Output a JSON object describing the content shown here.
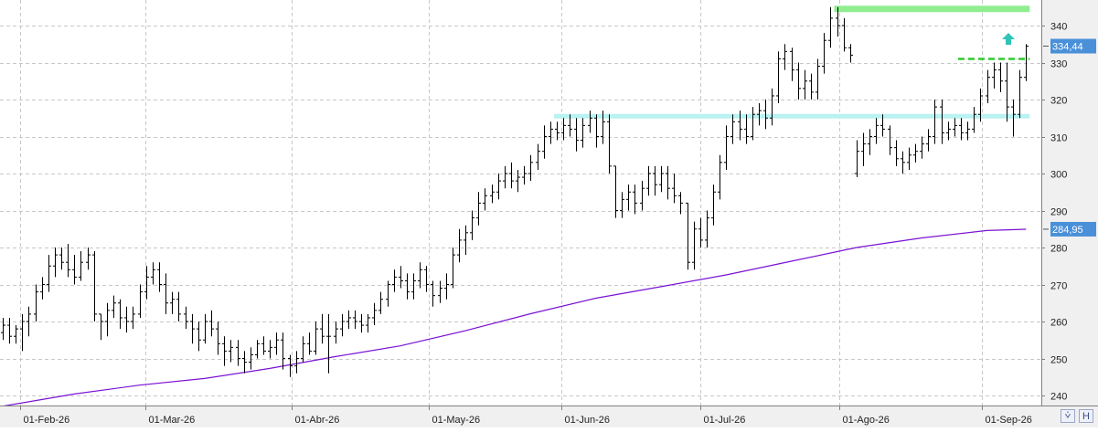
{
  "chart_data": {
    "type": "ohlc",
    "x_labels": [
      "01-Feb-26",
      "01-Mar-26",
      "01-Abr-26",
      "01-May-26",
      "01-Jun-26",
      "01-Jul-26",
      "01-Ago-26",
      "01-Sep-26"
    ],
    "y_ticks": [
      240,
      250,
      260,
      270,
      280,
      290,
      300,
      310,
      320,
      330,
      340
    ],
    "ylim": [
      236,
      346
    ],
    "last_price": 334.44,
    "last_price_label": "334,44",
    "ma_value": 284.95,
    "ma_label": "284,95",
    "grid": true,
    "bars": [
      [
        -1,
        257,
        261,
        255,
        259
      ],
      [
        0,
        259,
        261,
        254,
        256
      ],
      [
        1,
        256,
        259,
        254,
        258
      ],
      [
        2,
        258,
        262,
        252,
        260
      ],
      [
        3,
        260,
        264,
        256,
        262
      ],
      [
        4,
        262,
        270,
        260,
        268
      ],
      [
        5,
        268,
        272,
        266,
        270
      ],
      [
        6,
        270,
        278,
        268,
        275
      ],
      [
        7,
        275,
        280,
        272,
        278
      ],
      [
        8,
        278,
        280,
        274,
        276
      ],
      [
        9,
        276,
        281,
        272,
        274
      ],
      [
        10,
        274,
        278,
        270,
        272
      ],
      [
        11,
        272,
        279,
        271,
        276
      ],
      [
        12,
        276,
        280,
        274,
        278
      ],
      [
        13,
        278,
        279,
        260,
        262
      ],
      [
        14,
        262,
        262,
        255,
        260
      ],
      [
        15,
        260,
        265,
        256,
        263
      ],
      [
        16,
        263,
        267,
        261,
        265
      ],
      [
        17,
        265,
        266,
        258,
        261
      ],
      [
        18,
        261,
        264,
        257,
        260
      ],
      [
        19,
        260,
        264,
        258,
        262
      ],
      [
        20,
        262,
        270,
        261,
        268
      ],
      [
        21,
        268,
        275,
        266,
        272
      ],
      [
        22,
        272,
        276,
        270,
        274
      ],
      [
        23,
        274,
        276,
        268,
        270
      ],
      [
        24,
        270,
        273,
        262,
        265
      ],
      [
        25,
        265,
        268,
        262,
        266
      ],
      [
        26,
        266,
        268,
        260,
        262
      ],
      [
        27,
        262,
        264,
        258,
        260
      ],
      [
        28,
        260,
        262,
        254,
        258
      ],
      [
        29,
        258,
        260,
        252,
        255
      ],
      [
        30,
        255,
        262,
        254,
        260
      ],
      [
        31,
        260,
        263,
        256,
        258
      ],
      [
        32,
        258,
        260,
        251,
        254
      ],
      [
        33,
        254,
        256,
        248,
        252
      ],
      [
        34,
        252,
        255,
        249,
        253
      ],
      [
        35,
        253,
        255,
        248,
        250
      ],
      [
        36,
        250,
        252,
        246,
        249
      ],
      [
        37,
        249,
        253,
        247,
        251
      ],
      [
        38,
        251,
        255,
        250,
        254
      ],
      [
        39,
        254,
        256,
        251,
        252
      ],
      [
        40,
        252,
        255,
        250,
        253
      ],
      [
        41,
        253,
        257,
        251,
        255
      ],
      [
        42,
        255,
        257,
        247,
        250
      ],
      [
        43,
        250,
        251,
        245,
        248
      ],
      [
        44,
        248,
        252,
        246,
        250
      ],
      [
        45,
        250,
        256,
        249,
        254
      ],
      [
        46,
        254,
        257,
        251,
        252
      ],
      [
        47,
        252,
        260,
        251,
        258
      ],
      [
        48,
        258,
        262,
        254,
        256
      ],
      [
        49,
        256,
        262,
        246,
        256
      ],
      [
        50,
        256,
        260,
        254,
        258
      ],
      [
        51,
        258,
        262,
        256,
        260
      ],
      [
        52,
        260,
        263,
        258,
        261
      ],
      [
        53,
        261,
        263,
        258,
        260
      ],
      [
        54,
        260,
        262,
        257,
        259
      ],
      [
        55,
        259,
        262,
        257,
        261
      ],
      [
        56,
        261,
        265,
        259,
        263
      ],
      [
        57,
        263,
        268,
        262,
        266
      ],
      [
        58,
        266,
        271,
        264,
        270
      ],
      [
        59,
        270,
        274,
        268,
        272
      ],
      [
        60,
        272,
        275,
        269,
        271
      ],
      [
        61,
        271,
        273,
        266,
        268
      ],
      [
        62,
        268,
        273,
        266,
        271
      ],
      [
        63,
        271,
        276,
        269,
        274
      ],
      [
        64,
        274,
        275,
        268,
        270
      ],
      [
        65,
        270,
        271,
        264,
        267
      ],
      [
        66,
        267,
        271,
        265,
        269
      ],
      [
        67,
        269,
        273,
        266,
        270
      ],
      [
        68,
        270,
        280,
        269,
        278
      ],
      [
        69,
        278,
        285,
        276,
        282
      ],
      [
        70,
        282,
        286,
        278,
        284
      ],
      [
        71,
        284,
        290,
        282,
        288
      ],
      [
        72,
        288,
        295,
        286,
        292
      ],
      [
        73,
        292,
        296,
        290,
        294
      ],
      [
        74,
        294,
        297,
        292,
        295
      ],
      [
        75,
        295,
        300,
        293,
        298
      ],
      [
        76,
        298,
        302,
        296,
        300
      ],
      [
        77,
        300,
        303,
        296,
        298
      ],
      [
        78,
        298,
        301,
        295,
        299
      ],
      [
        79,
        299,
        302,
        297,
        300
      ],
      [
        80,
        300,
        305,
        298,
        303
      ],
      [
        81,
        303,
        308,
        301,
        306
      ],
      [
        82,
        306,
        313,
        304,
        310
      ],
      [
        83,
        310,
        314,
        308,
        312
      ],
      [
        84,
        312,
        314,
        309,
        311
      ],
      [
        85,
        311,
        315,
        309,
        313
      ],
      [
        86,
        313,
        316,
        310,
        312
      ],
      [
        87,
        312,
        315,
        306,
        309
      ],
      [
        88,
        309,
        315,
        307,
        313
      ],
      [
        89,
        313,
        317,
        311,
        315
      ],
      [
        90,
        315,
        316,
        307,
        310
      ],
      [
        91,
        310,
        317,
        308,
        314
      ],
      [
        92,
        314,
        316,
        300,
        302
      ],
      [
        93,
        302,
        302,
        288,
        290
      ],
      [
        94,
        290,
        295,
        288,
        293
      ],
      [
        95,
        293,
        297,
        290,
        295
      ],
      [
        96,
        295,
        297,
        289,
        292
      ],
      [
        97,
        292,
        298,
        290,
        296
      ],
      [
        98,
        296,
        302,
        294,
        300
      ],
      [
        99,
        300,
        302,
        294,
        297
      ],
      [
        100,
        297,
        302,
        295,
        300
      ],
      [
        101,
        300,
        302,
        293,
        296
      ],
      [
        102,
        296,
        300,
        292,
        294
      ],
      [
        103,
        294,
        295,
        289,
        292
      ],
      [
        104,
        292,
        292,
        274,
        276
      ],
      [
        105,
        276,
        287,
        274,
        285
      ],
      [
        106,
        285,
        288,
        280,
        282
      ],
      [
        107,
        282,
        290,
        280,
        288
      ],
      [
        108,
        288,
        297,
        286,
        295
      ],
      [
        109,
        295,
        305,
        293,
        303
      ],
      [
        110,
        303,
        313,
        301,
        310
      ],
      [
        111,
        310,
        316,
        308,
        314
      ],
      [
        112,
        314,
        317,
        309,
        312
      ],
      [
        113,
        312,
        316,
        308,
        310
      ],
      [
        114,
        310,
        318,
        309,
        316
      ],
      [
        115,
        316,
        319,
        313,
        317
      ],
      [
        116,
        317,
        320,
        312,
        315
      ],
      [
        117,
        315,
        323,
        313,
        321
      ],
      [
        118,
        321,
        333,
        319,
        331
      ],
      [
        119,
        331,
        335,
        328,
        333
      ],
      [
        120,
        333,
        334,
        325,
        328
      ],
      [
        121,
        328,
        330,
        320,
        323
      ],
      [
        122,
        323,
        328,
        320,
        325
      ],
      [
        123,
        325,
        327,
        320,
        322
      ],
      [
        124,
        322,
        331,
        320,
        329
      ],
      [
        125,
        329,
        338,
        327,
        336
      ],
      [
        126,
        336,
        345,
        334,
        342
      ],
      [
        127,
        342,
        345,
        337,
        340
      ],
      [
        128,
        340,
        342,
        333,
        334
      ],
      [
        129,
        334,
        335,
        330,
        332
      ],
      [
        130,
        300,
        309,
        299,
        306
      ],
      [
        131,
        306,
        311,
        302,
        308
      ],
      [
        132,
        308,
        312,
        305,
        310
      ],
      [
        133,
        310,
        315,
        308,
        313
      ],
      [
        134,
        313,
        316,
        310,
        312
      ],
      [
        135,
        312,
        313,
        305,
        307
      ],
      [
        136,
        307,
        309,
        302,
        304
      ],
      [
        137,
        304,
        306,
        300,
        303
      ],
      [
        138,
        303,
        307,
        301,
        305
      ],
      [
        139,
        305,
        308,
        303,
        306
      ],
      [
        140,
        306,
        310,
        304,
        308
      ],
      [
        141,
        308,
        312,
        306,
        310
      ],
      [
        142,
        310,
        320,
        308,
        318
      ],
      [
        143,
        318,
        320,
        308,
        311
      ],
      [
        144,
        311,
        314,
        309,
        312
      ],
      [
        145,
        312,
        315,
        310,
        313
      ],
      [
        146,
        313,
        315,
        309,
        311
      ],
      [
        147,
        311,
        314,
        309,
        312
      ],
      [
        148,
        312,
        318,
        311,
        316
      ],
      [
        149,
        316,
        323,
        314,
        321
      ],
      [
        150,
        321,
        328,
        319,
        326
      ],
      [
        151,
        326,
        330,
        323,
        328
      ],
      [
        152,
        328,
        330,
        322,
        325
      ],
      [
        153,
        325,
        330,
        314,
        318
      ],
      [
        154,
        318,
        320,
        310,
        316
      ],
      [
        155,
        316,
        328,
        315,
        326
      ],
      [
        156,
        326,
        335,
        325,
        334.44
      ]
    ],
    "ma200": [
      [
        -3,
        236.5
      ],
      [
        10,
        240.4
      ],
      [
        20,
        242.8
      ],
      [
        30,
        244.6
      ],
      [
        40,
        247.3
      ],
      [
        50,
        250.5
      ],
      [
        60,
        253.4
      ],
      [
        70,
        257.5
      ],
      [
        80,
        262.1
      ],
      [
        90,
        266.3
      ],
      [
        100,
        269.4
      ],
      [
        110,
        272.6
      ],
      [
        120,
        276.3
      ],
      [
        130,
        280
      ],
      [
        140,
        282.6
      ],
      [
        150,
        284.6
      ],
      [
        156,
        284.95
      ]
    ],
    "levels": [
      {
        "kind": "resistance",
        "value": 344.5,
        "from_bar": 127,
        "to_bar": 156,
        "color": "#90ee90"
      },
      {
        "kind": "breakout",
        "value": 331,
        "from_bar": 146,
        "to_bar": 156,
        "color": "#2ecc2e"
      },
      {
        "kind": "support",
        "value": 315.5,
        "from_bar": 84,
        "to_bar": 156,
        "color": "#b8f2f2"
      }
    ]
  },
  "colors": {
    "bars": "#000000",
    "ma": "#7a12d4",
    "grid": "#c8c8c8",
    "axis_bg": "#f0f0f0",
    "price_box": "#4a90d9",
    "arrow": "#2ec4b6"
  },
  "icons": [
    "arrow-up-icon",
    "corner-buttons"
  ]
}
